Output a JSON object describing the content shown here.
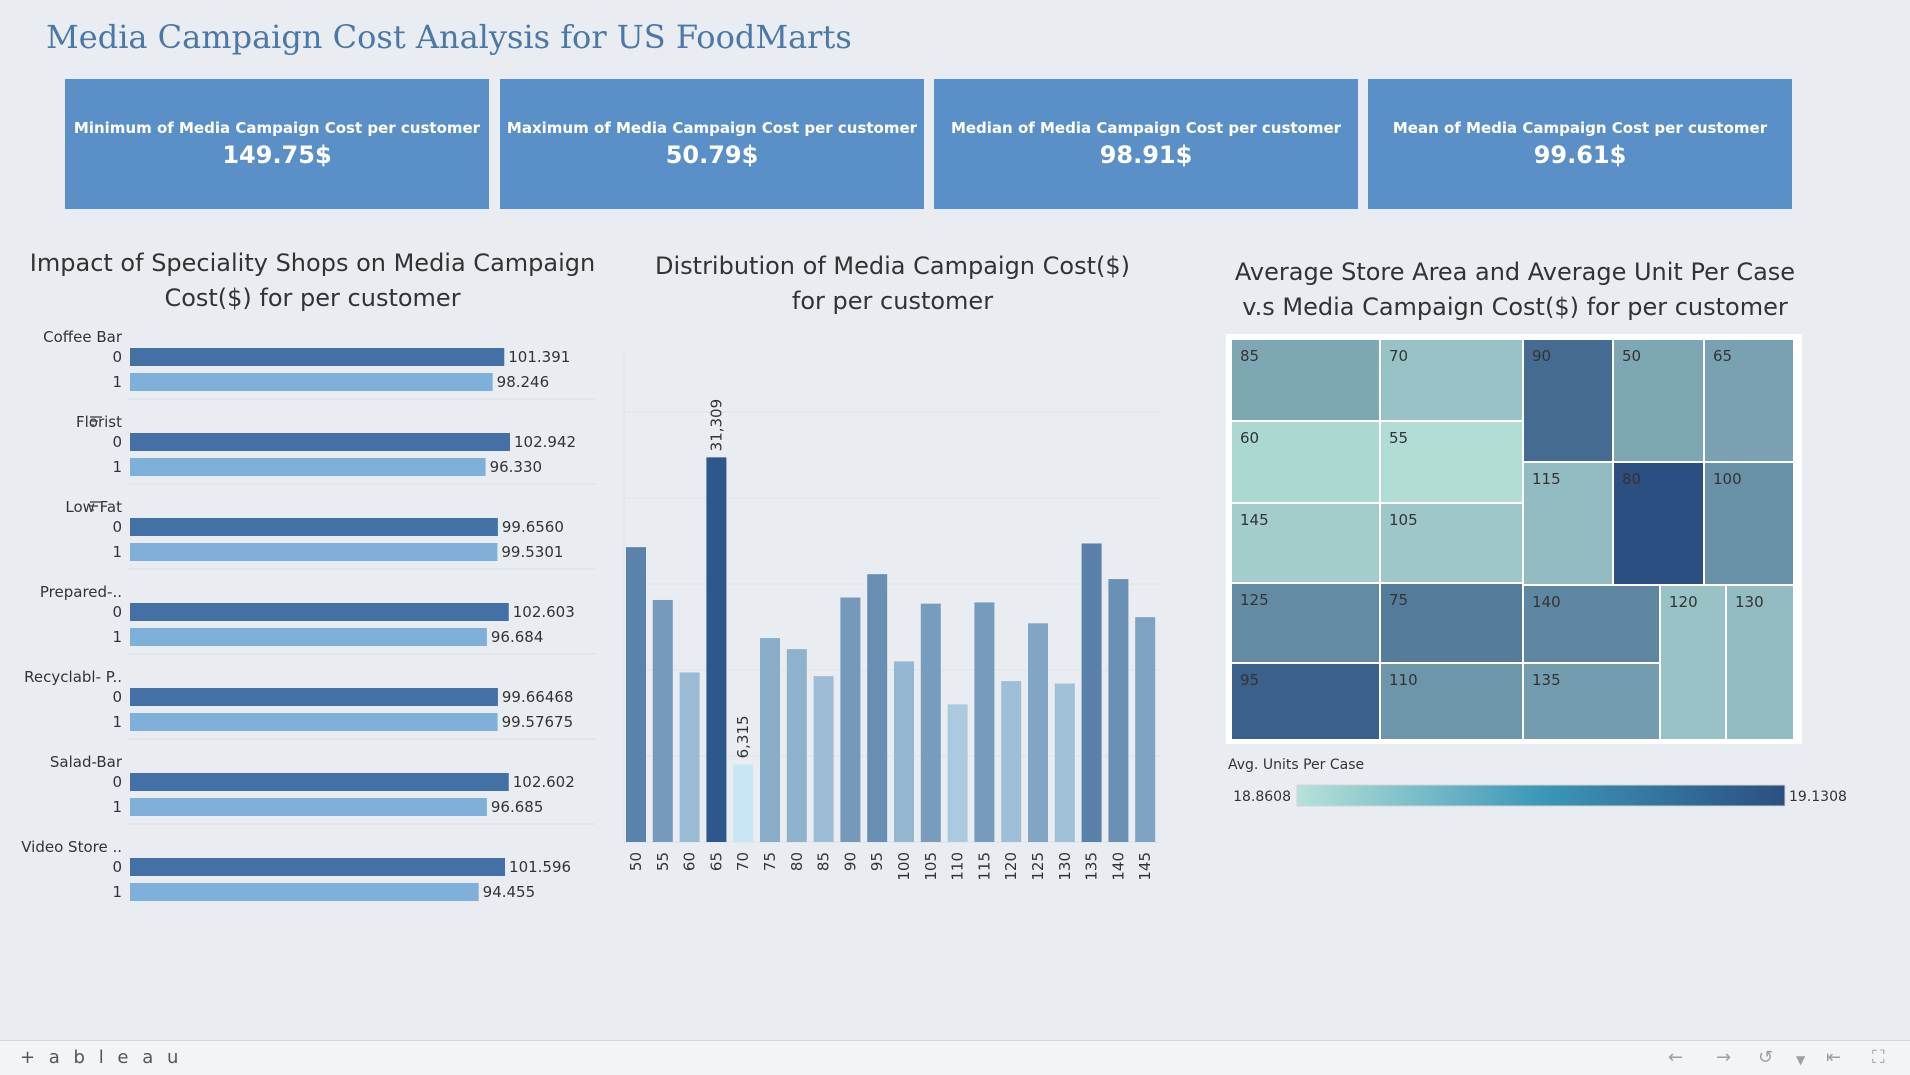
{
  "title": "Media Campaign Cost Analysis for US FoodMarts",
  "kpis": [
    {
      "label": "Minimum of Media Campaign Cost per customer",
      "value": "149.75$"
    },
    {
      "label": "Maximum of Media Campaign Cost per customer",
      "value": "50.79$"
    },
    {
      "label": "Median of Media Campaign Cost  per customer",
      "value": "98.91$"
    },
    {
      "label": "Mean of Media Campaign Cost per customer",
      "value": "99.61$"
    }
  ],
  "colors": {
    "kpi": "#5b8fc7",
    "bar_0": "#4371a6",
    "bar_1": "#7fb0da",
    "heat_low": "#b6e2d8",
    "heat_high": "#2b4f80"
  },
  "panels": {
    "shops_title": [
      "Impact of Speciality Shops  on Media Campaign",
      "Cost($) for per customer"
    ],
    "dist_title": [
      "Distribution of Media Campaign Cost($)",
      "for per customer"
    ],
    "tree_title": [
      "Average Store Area and Average Unit Per Case",
      "v.s Media Campaign Cost($)  for per customer"
    ]
  },
  "chart_data": [
    {
      "type": "bar",
      "orientation": "horizontal",
      "groups": [
        {
          "name": "Coffee Bar",
          "rows": [
            {
              "label": "0",
              "value": 101.391,
              "text": "101.391"
            },
            {
              "label": "1",
              "value": 98.246,
              "text": "98.246"
            }
          ]
        },
        {
          "name": "Florist",
          "sort_icon": true,
          "rows": [
            {
              "label": "0",
              "value": 102.942,
              "text": "102.942"
            },
            {
              "label": "1",
              "value": 96.33,
              "text": "96.330"
            }
          ]
        },
        {
          "name": "Low Fat",
          "sort_icon": true,
          "rows": [
            {
              "label": "0",
              "value": 99.656,
              "text": "99.6560"
            },
            {
              "label": "1",
              "value": 99.5301,
              "text": "99.5301"
            }
          ]
        },
        {
          "name": "Prepared-..",
          "rows": [
            {
              "label": "0",
              "value": 102.603,
              "text": "102.603"
            },
            {
              "label": "1",
              "value": 96.684,
              "text": "96.684"
            }
          ]
        },
        {
          "name": "Recyclabl- P..",
          "rows": [
            {
              "label": "0",
              "value": 99.66468,
              "text": "99.66468"
            },
            {
              "label": "1",
              "value": 99.57675,
              "text": "99.57675"
            }
          ]
        },
        {
          "name": "Salad-Bar",
          "rows": [
            {
              "label": "0",
              "value": 102.602,
              "text": "102.602"
            },
            {
              "label": "1",
              "value": 96.685,
              "text": "96.685"
            }
          ]
        },
        {
          "name": "Video Store ..",
          "rows": [
            {
              "label": "0",
              "value": 101.596,
              "text": "101.596"
            },
            {
              "label": "1",
              "value": 94.455,
              "text": "94.455"
            }
          ]
        }
      ]
    },
    {
      "type": "bar",
      "categories": [
        "50",
        "55",
        "60",
        "65",
        "70",
        "75",
        "80",
        "85",
        "90",
        "95",
        "100",
        "105",
        "110",
        "115",
        "120",
        "125",
        "130",
        "135",
        "140",
        "145"
      ],
      "values": [
        24000,
        19700,
        13800,
        31309,
        6315,
        16600,
        15700,
        13500,
        19900,
        21800,
        14700,
        19400,
        11200,
        19500,
        13100,
        17800,
        12900,
        24300,
        21400,
        18300
      ],
      "labels": {
        "65": "31,309",
        "70": "6,315"
      },
      "ylim": [
        0,
        35000
      ]
    },
    {
      "type": "heatmap",
      "subtype": "treemap",
      "cells": [
        {
          "label": "85",
          "value": 18.97
        },
        {
          "label": "70",
          "value": 18.92
        },
        {
          "label": "90",
          "value": 19.08
        },
        {
          "label": "50",
          "value": 18.97
        },
        {
          "label": "65",
          "value": 18.98
        },
        {
          "label": "60",
          "value": 18.88
        },
        {
          "label": "55",
          "value": 18.87
        },
        {
          "label": "115",
          "value": 18.93
        },
        {
          "label": "80",
          "value": 19.13
        },
        {
          "label": "100",
          "value": 19.01
        },
        {
          "label": "145",
          "value": 18.9
        },
        {
          "label": "105",
          "value": 18.91
        },
        {
          "label": "125",
          "value": 19.02
        },
        {
          "label": "75",
          "value": 19.05
        },
        {
          "label": "140",
          "value": 19.03
        },
        {
          "label": "120",
          "value": 18.92
        },
        {
          "label": "130",
          "value": 18.93
        },
        {
          "label": "95",
          "value": 19.1
        },
        {
          "label": "110",
          "value": 19.0
        },
        {
          "label": "135",
          "value": 18.99
        }
      ],
      "legend": {
        "title": "Avg. Units Per Case",
        "min_label": "18.8608",
        "max_label": "19.1308",
        "min": 18.8608,
        "max": 19.1308
      }
    }
  ],
  "footer": {
    "brand": "+ a b l e a u"
  }
}
